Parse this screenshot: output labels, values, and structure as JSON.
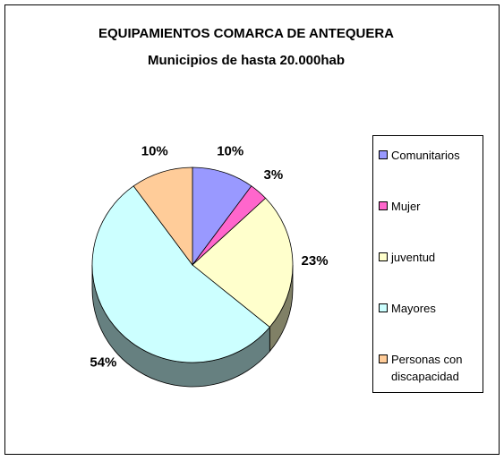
{
  "chart_data": {
    "type": "pie",
    "title": "EQUIPAMIENTOS COMARCA DE ANTEQUERA",
    "subtitle": "Municipios de hasta 20.000hab",
    "categories": [
      "Comunitarios",
      "Mujer",
      "juventud",
      "Mayores",
      "Personas con discapacidad"
    ],
    "values": [
      10,
      3,
      23,
      54,
      10
    ],
    "value_labels": [
      "10%",
      "3%",
      "23%",
      "54%",
      "10%"
    ],
    "colors": [
      "#9999ff",
      "#ff66cc",
      "#ffffcc",
      "#ccffff",
      "#ffcc99"
    ],
    "legend": "right"
  }
}
